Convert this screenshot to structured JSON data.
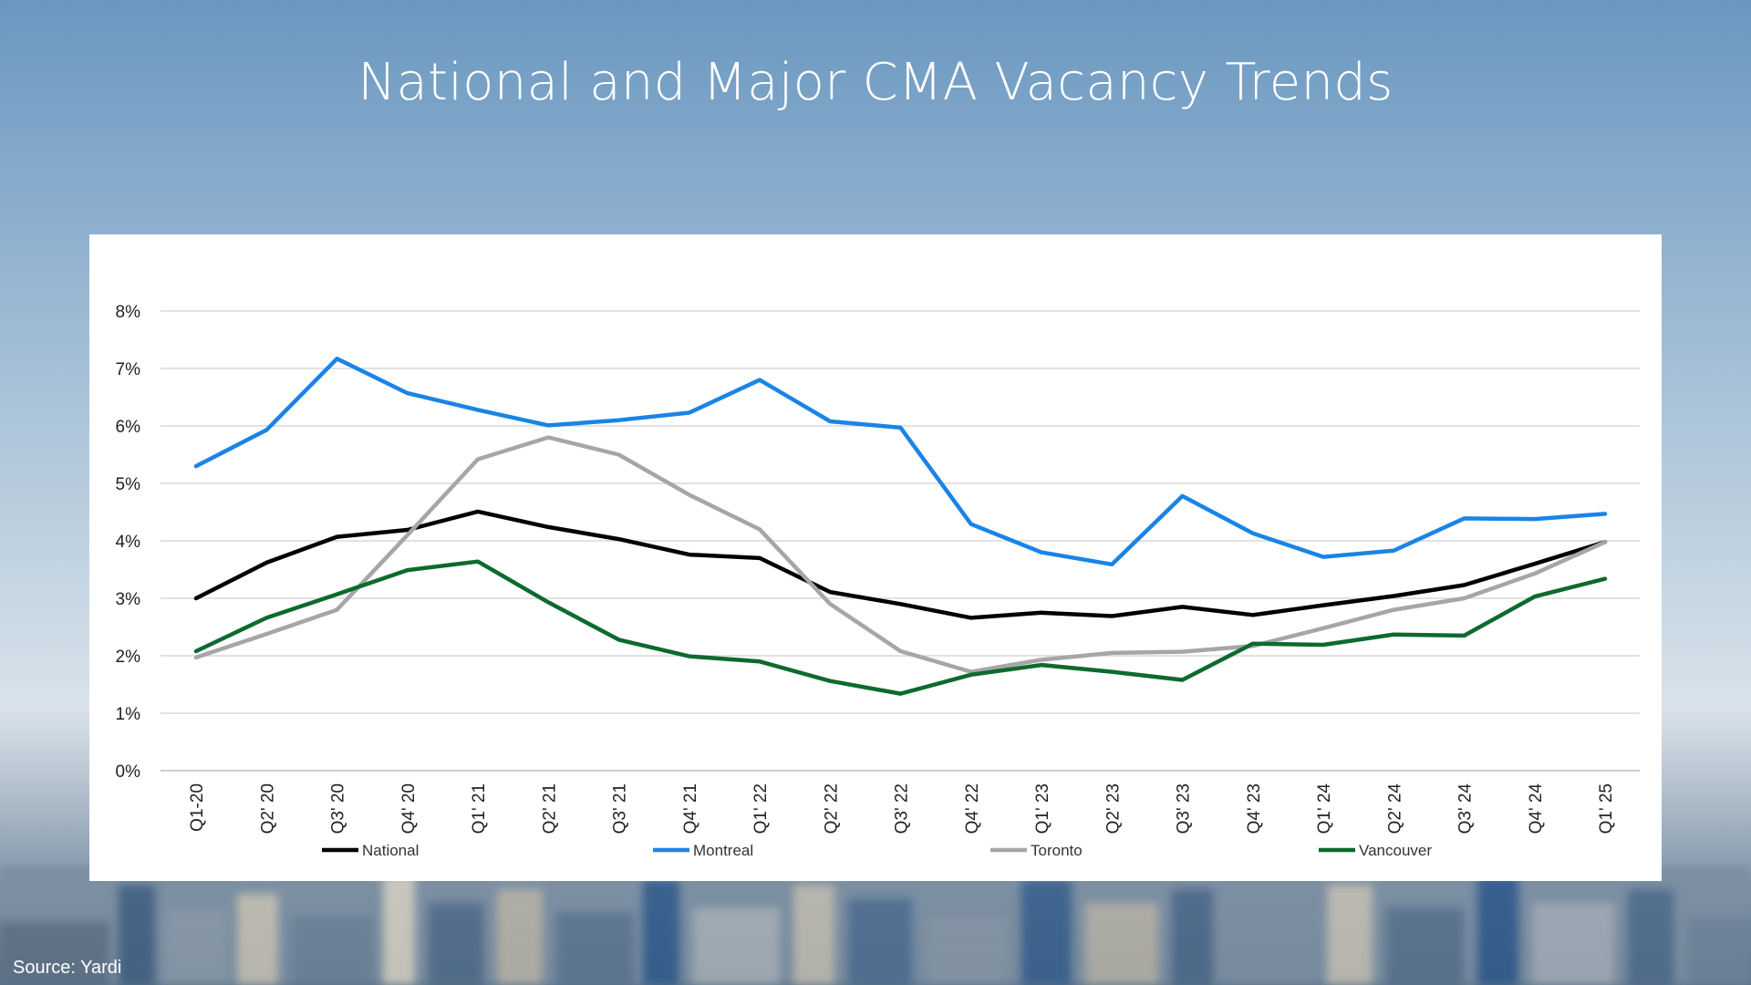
{
  "slide": {
    "title": "National and Major CMA Vacancy Trends",
    "source": "Source: Yardi"
  },
  "chart_data": {
    "type": "line",
    "title": "",
    "xlabel": "",
    "ylabel": "",
    "categories": [
      "Q1-20",
      "Q2' 20",
      "Q3' 20",
      "Q4' 20",
      "Q1' 21",
      "Q2' 21",
      "Q3' 21",
      "Q4' 21",
      "Q1' 22",
      "Q2' 22",
      "Q3' 22",
      "Q4' 22",
      "Q1' 23",
      "Q2' 23",
      "Q3' 23",
      "Q4' 23",
      "Q1' 24",
      "Q2' 24",
      "Q3' 24",
      "Q4' 24",
      "Q1' 25"
    ],
    "ylim": [
      0,
      8
    ],
    "yticks": [
      "0%",
      "1%",
      "2%",
      "3%",
      "4%",
      "5%",
      "6%",
      "7%",
      "8%"
    ],
    "grid": true,
    "legend_position": "bottom",
    "series": [
      {
        "name": "National",
        "color": "#000000",
        "values": [
          3.0,
          3.62,
          4.07,
          4.19,
          4.51,
          4.24,
          4.03,
          3.76,
          3.7,
          3.11,
          2.9,
          2.66,
          2.75,
          2.69,
          2.85,
          2.71,
          2.88,
          3.04,
          3.23,
          3.6,
          3.98
        ]
      },
      {
        "name": "Montreal",
        "color": "#1a84e6",
        "values": [
          5.3,
          5.93,
          7.17,
          6.57,
          6.28,
          6.01,
          6.1,
          6.23,
          6.8,
          6.08,
          5.97,
          4.29,
          3.8,
          3.59,
          4.78,
          4.13,
          3.72,
          3.83,
          4.39,
          4.38,
          4.47
        ]
      },
      {
        "name": "Toronto",
        "color": "#a6a6a6",
        "values": [
          1.97,
          2.38,
          2.8,
          4.1,
          5.42,
          5.8,
          5.5,
          4.8,
          4.2,
          2.9,
          2.08,
          1.72,
          1.93,
          2.05,
          2.07,
          2.17,
          2.48,
          2.8,
          3.0,
          3.43,
          3.98
        ]
      },
      {
        "name": "Vancouver",
        "color": "#0d6a2e",
        "values": [
          2.08,
          2.66,
          3.07,
          3.49,
          3.64,
          2.93,
          2.28,
          1.99,
          1.9,
          1.56,
          1.34,
          1.67,
          1.84,
          1.72,
          1.58,
          2.21,
          2.19,
          2.37,
          2.35,
          3.03,
          3.34
        ]
      }
    ]
  }
}
